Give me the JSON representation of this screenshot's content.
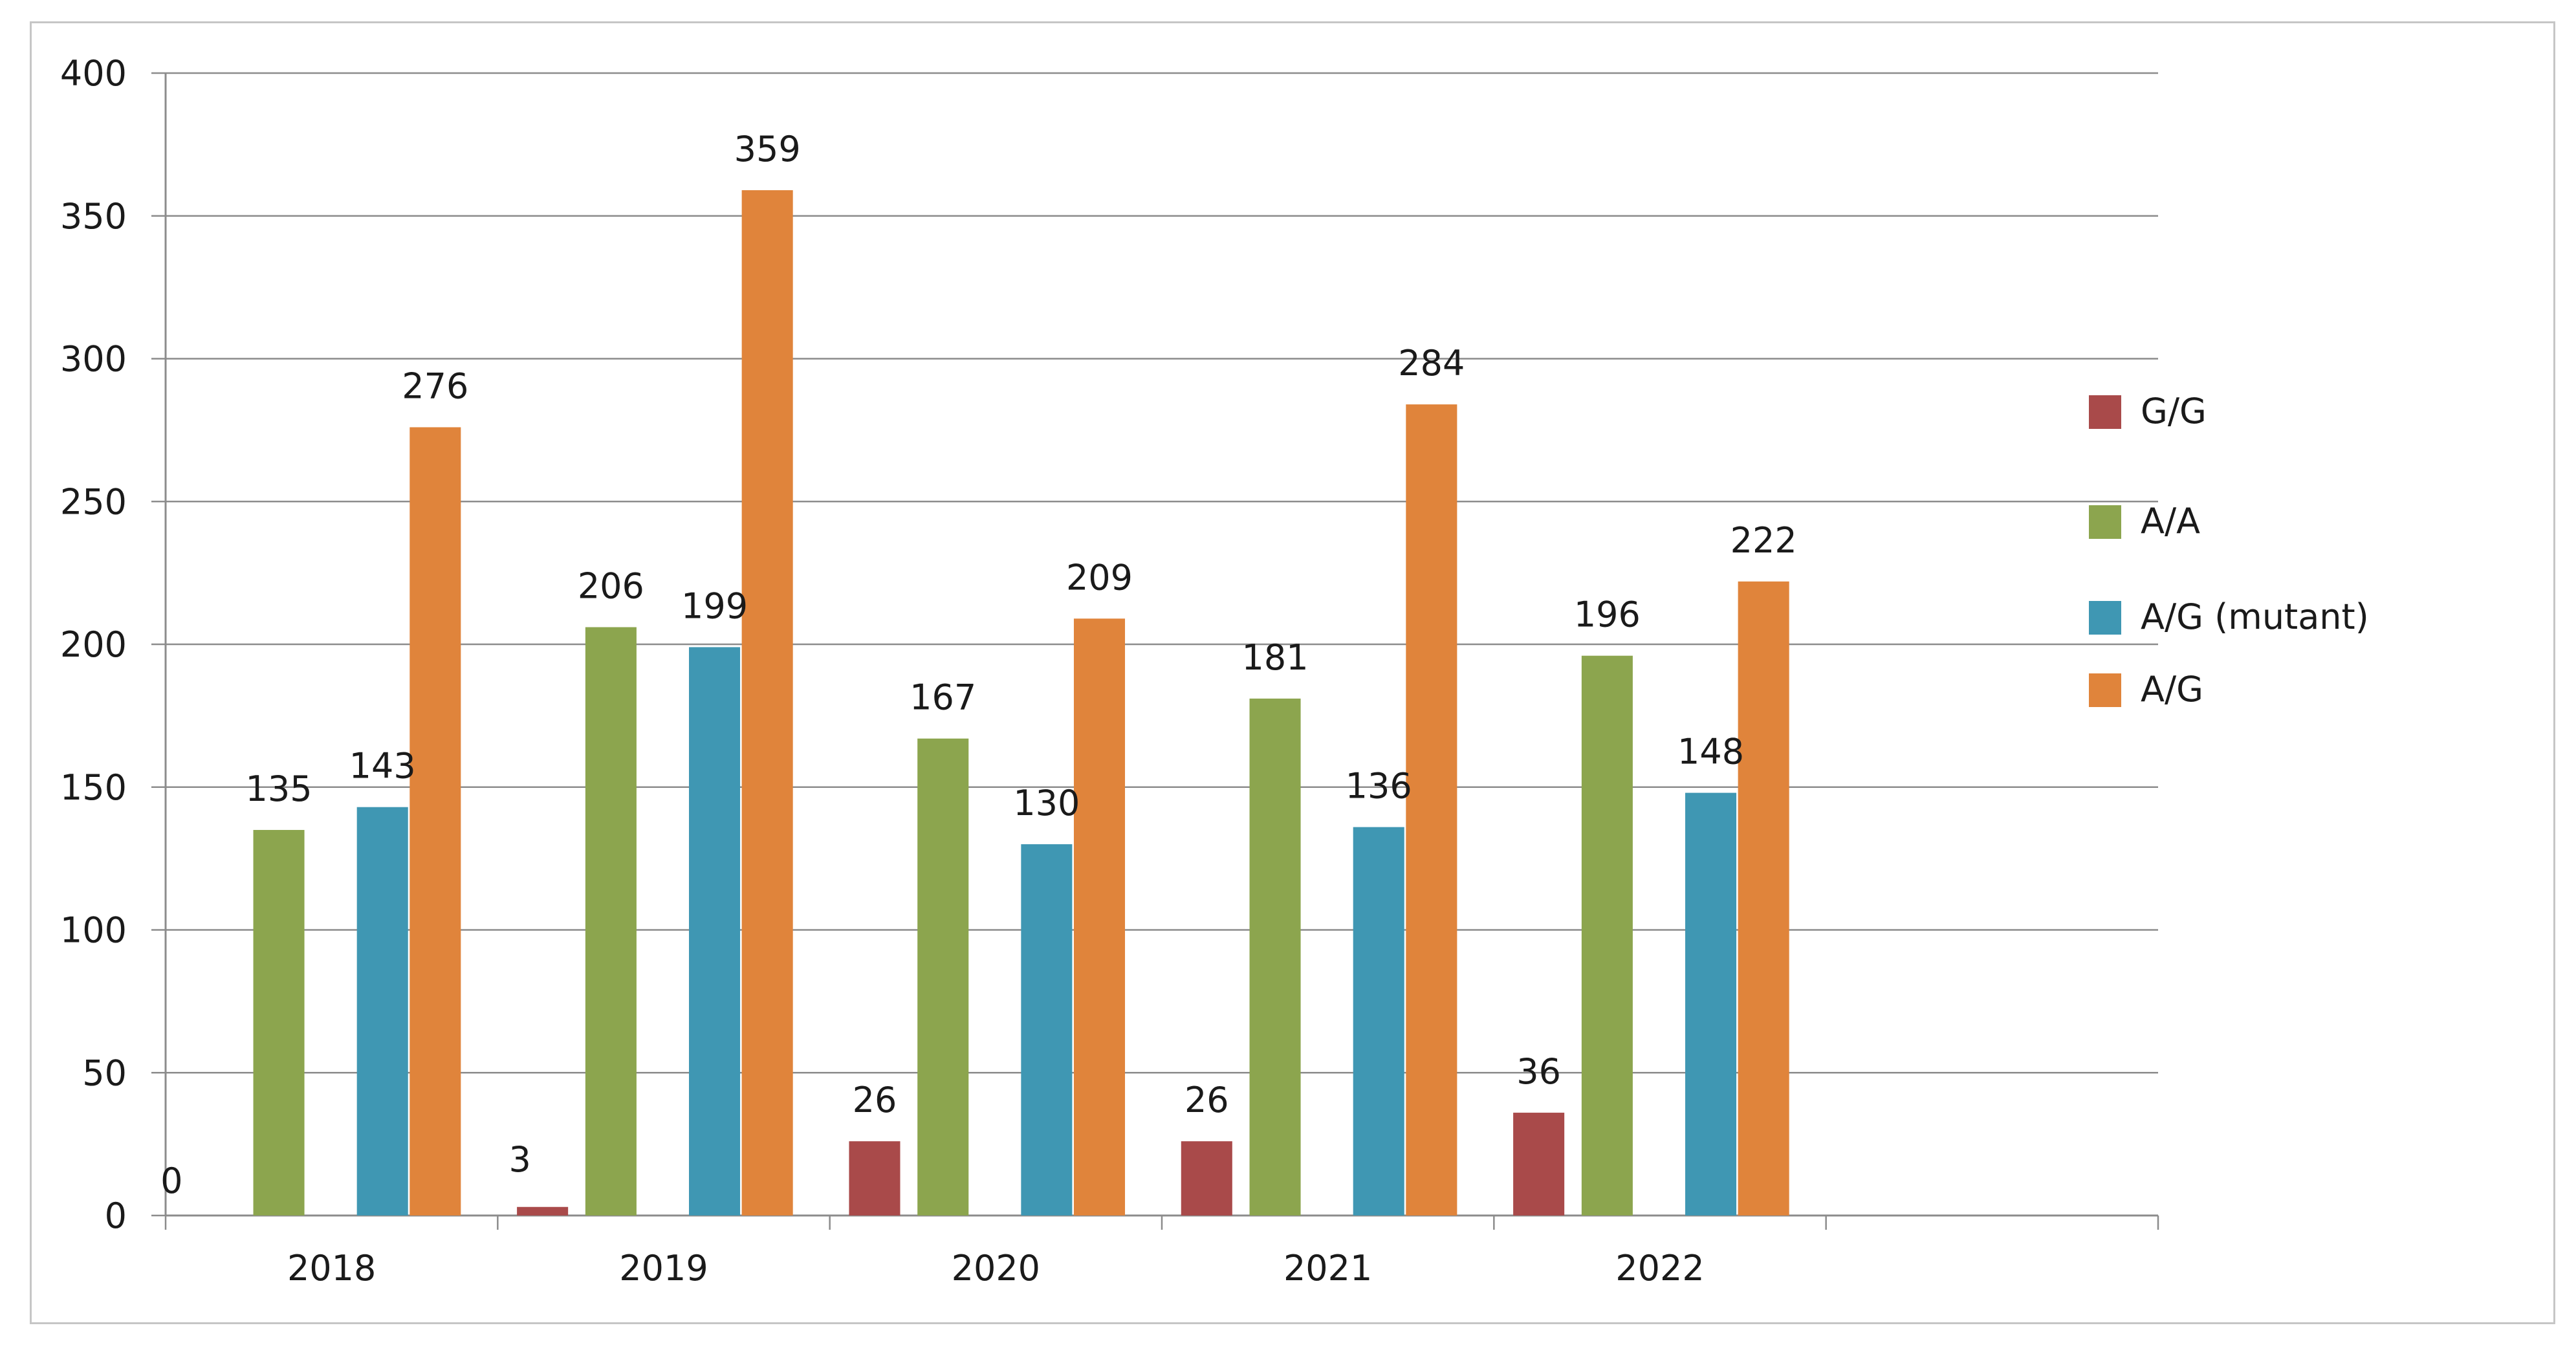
{
  "chart_data": {
    "type": "bar",
    "categories": [
      "2018",
      "2019",
      "2020",
      "2021",
      "2022",
      ""
    ],
    "series": [
      {
        "name": "G/G",
        "color": "#a94a4a",
        "values": [
          0,
          3,
          26,
          26,
          36,
          null
        ]
      },
      {
        "name": "A/A",
        "color": "#8ca54e",
        "values": [
          135,
          206,
          167,
          181,
          196,
          null
        ]
      },
      {
        "name": "A/G  (mutant)",
        "color": "#3f97b3",
        "values": [
          143,
          199,
          130,
          136,
          148,
          null
        ]
      },
      {
        "name": "A/G",
        "color": "#e0843b",
        "values": [
          276,
          359,
          209,
          284,
          222,
          null
        ]
      }
    ],
    "y_ticks": [
      "0",
      "50",
      "100",
      "150",
      "200",
      "250",
      "300",
      "350",
      "400"
    ],
    "ylim": [
      0,
      400
    ],
    "grid": true,
    "legend_position": "right",
    "title": "",
    "xlabel": "",
    "ylabel": ""
  }
}
